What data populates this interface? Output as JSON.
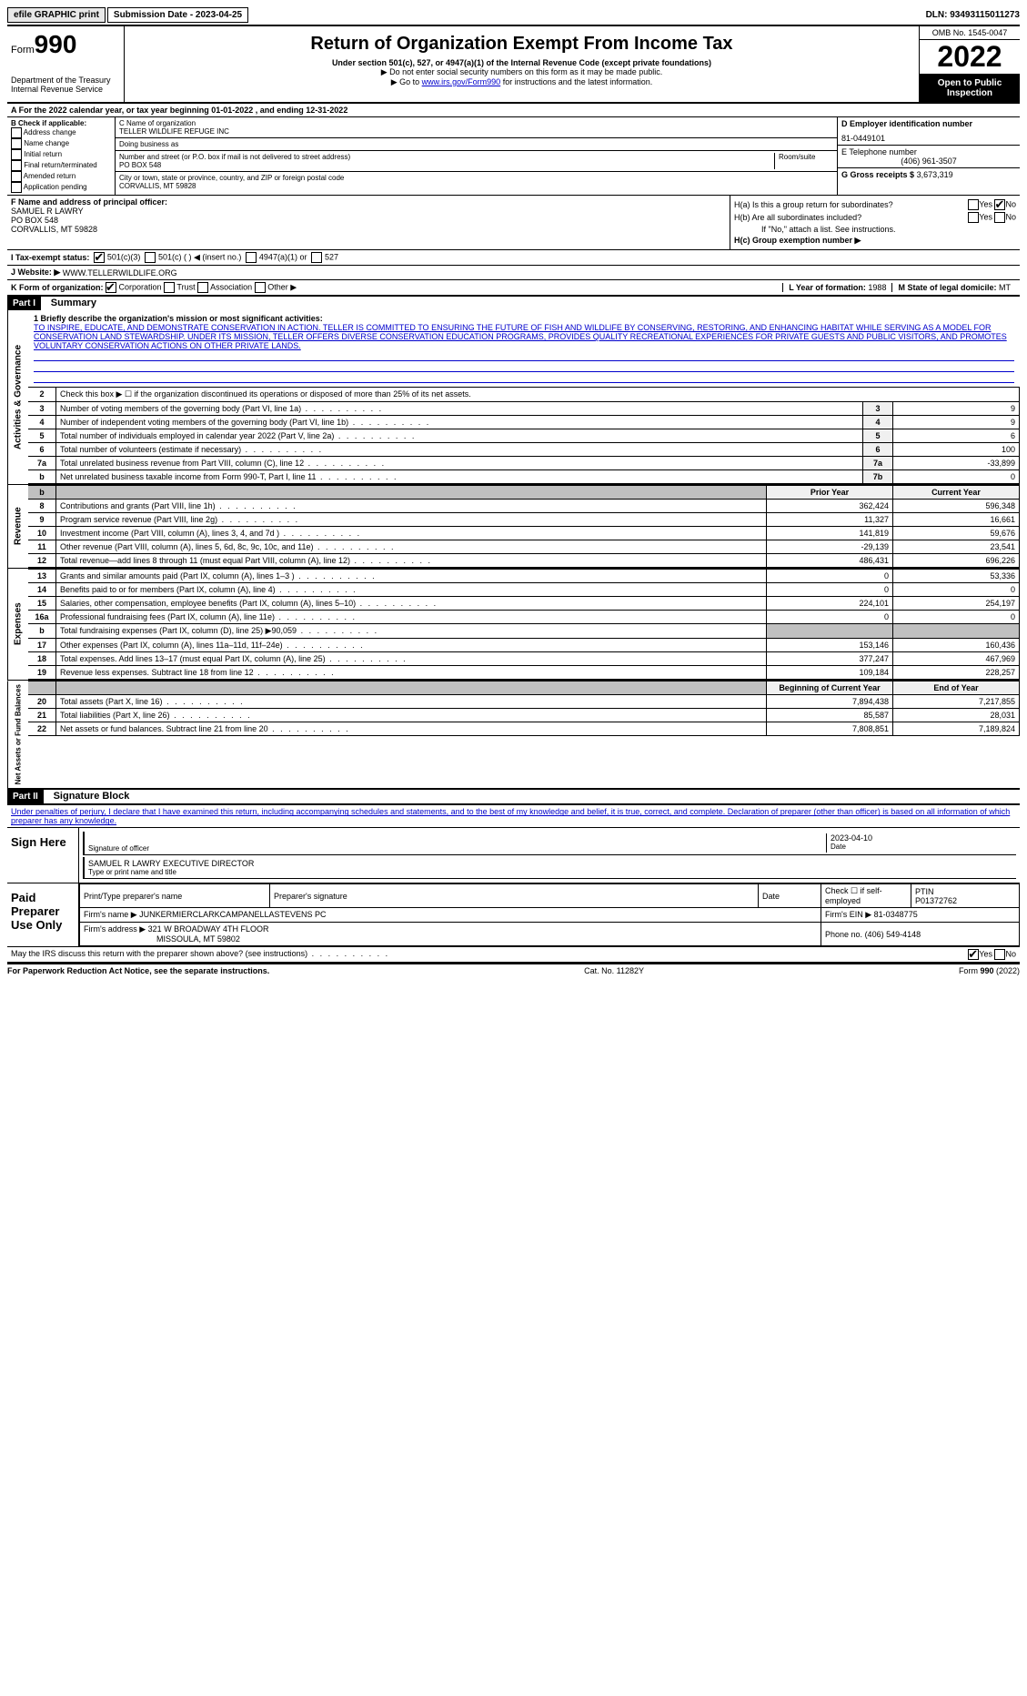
{
  "topbar": {
    "efile": "efile GRAPHIC print",
    "submission": "Submission Date - 2023-04-25",
    "dln": "DLN: 93493115011273"
  },
  "header": {
    "form_prefix": "Form",
    "form_number": "990",
    "dept": "Department of the Treasury",
    "irs": "Internal Revenue Service",
    "title": "Return of Organization Exempt From Income Tax",
    "subtitle": "Under section 501(c), 527, or 4947(a)(1) of the Internal Revenue Code (except private foundations)",
    "note1": "▶ Do not enter social security numbers on this form as it may be made public.",
    "note2_prefix": "▶ Go to ",
    "note2_link": "www.irs.gov/Form990",
    "note2_suffix": " for instructions and the latest information.",
    "omb": "OMB No. 1545-0047",
    "year": "2022",
    "open_public": "Open to Public Inspection"
  },
  "rowA": "A For the 2022 calendar year, or tax year beginning 01-01-2022    , and ending 12-31-2022",
  "colB": {
    "title": "B Check if applicable:",
    "opts": [
      "Address change",
      "Name change",
      "Initial return",
      "Final return/terminated",
      "Amended return",
      "Application pending"
    ]
  },
  "colC": {
    "name_label": "C Name of organization",
    "name": "TELLER WILDLIFE REFUGE INC",
    "dba_label": "Doing business as",
    "dba": "",
    "street_label": "Number and street (or P.O. box if mail is not delivered to street address)",
    "street": "PO BOX 548",
    "room_label": "Room/suite",
    "city_label": "City or town, state or province, country, and ZIP or foreign postal code",
    "city": "CORVALLIS, MT  59828"
  },
  "colD": {
    "ein_label": "D Employer identification number",
    "ein": "81-0449101",
    "phone_label": "E Telephone number",
    "phone": "(406) 961-3507",
    "gross_label": "G Gross receipts $",
    "gross": "3,673,319"
  },
  "colF": {
    "label": "F Name and address of principal officer:",
    "name": "SAMUEL R LAWRY",
    "addr1": "PO BOX 548",
    "addr2": "CORVALLIS, MT  59828"
  },
  "colH": {
    "ha_label": "H(a)  Is this a group return for subordinates?",
    "hb_label": "H(b)  Are all subordinates included?",
    "hb_note": "If \"No,\" attach a list. See instructions.",
    "hc_label": "H(c)  Group exemption number ▶"
  },
  "rowI": {
    "label": "I   Tax-exempt status:",
    "opt1": "501(c)(3)",
    "opt2": "501(c) (  ) ◀ (insert no.)",
    "opt3": "4947(a)(1) or",
    "opt4": "527"
  },
  "rowJ": {
    "label": "J   Website: ▶",
    "value": "WWW.TELLERWILDLIFE.ORG"
  },
  "rowK": {
    "label": "K Form of organization:",
    "opts": [
      "Corporation",
      "Trust",
      "Association",
      "Other ▶"
    ],
    "l_label": "L Year of formation:",
    "l_val": "1988",
    "m_label": "M State of legal domicile:",
    "m_val": "MT"
  },
  "part1": {
    "header": "Part I",
    "title": "Summary",
    "section1_label": "Activities & Governance",
    "section2_label": "Revenue",
    "section3_label": "Expenses",
    "section4_label": "Net Assets or Fund Balances",
    "line1_label": "1  Briefly describe the organization's mission or most significant activities:",
    "mission": "TO INSPIRE, EDUCATE, AND DEMONSTRATE CONSERVATION IN ACTION. TELLER IS COMMITTED TO ENSURING THE FUTURE OF FISH AND WILDLIFE BY CONSERVING, RESTORING, AND ENHANCING HABITAT WHILE SERVING AS A MODEL FOR CONSERVATION LAND STEWARDSHIP. UNDER ITS MISSION, TELLER OFFERS DIVERSE CONSERVATION EDUCATION PROGRAMS, PROVIDES QUALITY RECREATIONAL EXPERIENCES FOR PRIVATE GUESTS AND PUBLIC VISITORS, AND PROMOTES VOLUNTARY CONSERVATION ACTIONS ON OTHER PRIVATE LANDS.",
    "line2": "Check this box ▶ ☐  if the organization discontinued its operations or disposed of more than 25% of its net assets.",
    "rows_gov": [
      {
        "n": "3",
        "desc": "Number of voting members of the governing body (Part VI, line 1a)",
        "ln": "3",
        "v": "9"
      },
      {
        "n": "4",
        "desc": "Number of independent voting members of the governing body (Part VI, line 1b)",
        "ln": "4",
        "v": "9"
      },
      {
        "n": "5",
        "desc": "Total number of individuals employed in calendar year 2022 (Part V, line 2a)",
        "ln": "5",
        "v": "6"
      },
      {
        "n": "6",
        "desc": "Total number of volunteers (estimate if necessary)",
        "ln": "6",
        "v": "100"
      },
      {
        "n": "7a",
        "desc": "Total unrelated business revenue from Part VIII, column (C), line 12",
        "ln": "7a",
        "v": "-33,899"
      },
      {
        "n": "b",
        "desc": "Net unrelated business taxable income from Form 990-T, Part I, line 11",
        "ln": "7b",
        "v": "0"
      }
    ],
    "prior_year": "Prior Year",
    "current_year": "Current Year",
    "rows_rev": [
      {
        "n": "8",
        "desc": "Contributions and grants (Part VIII, line 1h)",
        "py": "362,424",
        "cy": "596,348"
      },
      {
        "n": "9",
        "desc": "Program service revenue (Part VIII, line 2g)",
        "py": "11,327",
        "cy": "16,661"
      },
      {
        "n": "10",
        "desc": "Investment income (Part VIII, column (A), lines 3, 4, and 7d )",
        "py": "141,819",
        "cy": "59,676"
      },
      {
        "n": "11",
        "desc": "Other revenue (Part VIII, column (A), lines 5, 6d, 8c, 9c, 10c, and 11e)",
        "py": "-29,139",
        "cy": "23,541"
      },
      {
        "n": "12",
        "desc": "Total revenue—add lines 8 through 11 (must equal Part VIII, column (A), line 12)",
        "py": "486,431",
        "cy": "696,226"
      }
    ],
    "rows_exp": [
      {
        "n": "13",
        "desc": "Grants and similar amounts paid (Part IX, column (A), lines 1–3 )",
        "py": "0",
        "cy": "53,336"
      },
      {
        "n": "14",
        "desc": "Benefits paid to or for members (Part IX, column (A), line 4)",
        "py": "0",
        "cy": "0"
      },
      {
        "n": "15",
        "desc": "Salaries, other compensation, employee benefits (Part IX, column (A), lines 5–10)",
        "py": "224,101",
        "cy": "254,197"
      },
      {
        "n": "16a",
        "desc": "Professional fundraising fees (Part IX, column (A), line 11e)",
        "py": "0",
        "cy": "0"
      },
      {
        "n": "b",
        "desc": "Total fundraising expenses (Part IX, column (D), line 25) ▶90,059",
        "py": "grey",
        "cy": "grey"
      },
      {
        "n": "17",
        "desc": "Other expenses (Part IX, column (A), lines 11a–11d, 11f–24e)",
        "py": "153,146",
        "cy": "160,436"
      },
      {
        "n": "18",
        "desc": "Total expenses. Add lines 13–17 (must equal Part IX, column (A), line 25)",
        "py": "377,247",
        "cy": "467,969"
      },
      {
        "n": "19",
        "desc": "Revenue less expenses. Subtract line 18 from line 12",
        "py": "109,184",
        "cy": "228,257"
      }
    ],
    "boy": "Beginning of Current Year",
    "eoy": "End of Year",
    "rows_net": [
      {
        "n": "20",
        "desc": "Total assets (Part X, line 16)",
        "py": "7,894,438",
        "cy": "7,217,855"
      },
      {
        "n": "21",
        "desc": "Total liabilities (Part X, line 26)",
        "py": "85,587",
        "cy": "28,031"
      },
      {
        "n": "22",
        "desc": "Net assets or fund balances. Subtract line 21 from line 20",
        "py": "7,808,851",
        "cy": "7,189,824"
      }
    ]
  },
  "part2": {
    "header": "Part II",
    "title": "Signature Block",
    "penalty": "Under penalties of perjury, I declare that I have examined this return, including accompanying schedules and statements, and to the best of my knowledge and belief, it is true, correct, and complete. Declaration of preparer (other than officer) is based on all information of which preparer has any knowledge.",
    "sign_here": "Sign Here",
    "sig_officer": "Signature of officer",
    "sig_date": "2023-04-10",
    "date_label": "Date",
    "officer_name": "SAMUEL R LAWRY  EXECUTIVE DIRECTOR",
    "officer_type": "Type or print name and title",
    "paid_preparer": "Paid Preparer Use Only",
    "prep_name_label": "Print/Type preparer's name",
    "prep_sig_label": "Preparer's signature",
    "prep_date_label": "Date",
    "prep_check": "Check ☐ if self-employed",
    "ptin_label": "PTIN",
    "ptin": "P01372762",
    "firm_name_label": "Firm's name    ▶",
    "firm_name": "JUNKERMIERCLARKCAMPANELLASTEVENS PC",
    "firm_ein_label": "Firm's EIN ▶",
    "firm_ein": "81-0348775",
    "firm_addr_label": "Firm's address ▶",
    "firm_addr": "321 W BROADWAY 4TH FLOOR",
    "firm_city": "MISSOULA, MT  59802",
    "firm_phone_label": "Phone no.",
    "firm_phone": "(406) 549-4148",
    "may_irs": "May the IRS discuss this return with the preparer shown above? (see instructions)"
  },
  "footer": {
    "left": "For Paperwork Reduction Act Notice, see the separate instructions.",
    "center": "Cat. No. 11282Y",
    "right_prefix": "Form ",
    "right_form": "990",
    "right_suffix": " (2022)"
  }
}
